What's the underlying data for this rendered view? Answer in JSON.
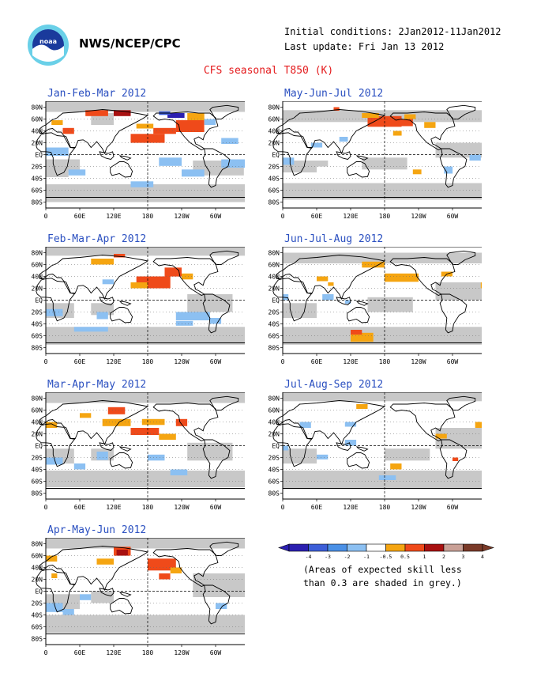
{
  "header": {
    "org": "NWS/NCEP/CPC",
    "initial_conditions": "Initial conditions: 2Jan2012-11Jan2012",
    "last_update": "Last update: Fri Jan 13 2012",
    "title": "CFS seasonal T850 (K)"
  },
  "axes": {
    "lat_labels": [
      "80N",
      "60N",
      "40N",
      "20N",
      "EQ",
      "20S",
      "40S",
      "60S",
      "80S"
    ],
    "lon_labels": [
      "0",
      "60E",
      "120E",
      "180",
      "120W",
      "60W",
      "0"
    ]
  },
  "panels": [
    {
      "title": "Jan-Feb-Mar 2012"
    },
    {
      "title": "May-Jun-Jul 2012"
    },
    {
      "title": "Feb-Mar-Apr 2012"
    },
    {
      "title": "Jun-Jul-Aug 2012"
    },
    {
      "title": "Mar-Apr-May 2012"
    },
    {
      "title": "Jul-Aug-Sep 2012"
    },
    {
      "title": "Apr-May-Jun 2012"
    }
  ],
  "legend": {
    "labels": [
      "-4",
      "-3",
      "-2",
      "-1",
      "-0.5",
      "0.5",
      "1",
      "2",
      "3",
      "4"
    ],
    "colors": [
      "#2b1fb0",
      "#3c5ed8",
      "#4a90e6",
      "#8cc0f2",
      "#ffffff",
      "#f5a511",
      "#ef4a1a",
      "#a81010",
      "#c9a096",
      "#7a3a28"
    ],
    "note_line1": "(Areas of expected skill less",
    "note_line2": "than 0.3 are shaded in grey.)"
  },
  "style": {
    "skill_grey": "#c8c8c8",
    "title_color": "#e41a1c",
    "panel_title_color": "#2a4fc0"
  }
}
